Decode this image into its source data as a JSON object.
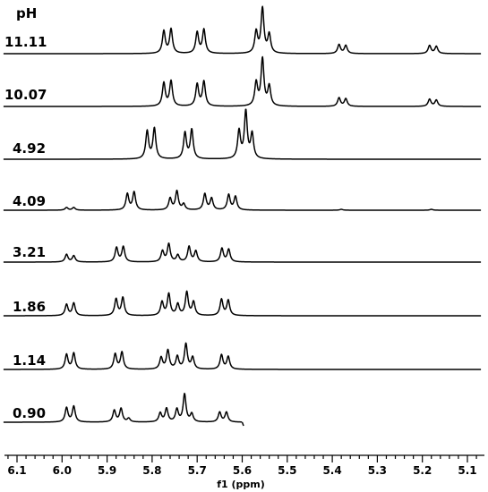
{
  "chart_data": {
    "type": "line",
    "title": "",
    "header": "pH",
    "xlabel": "f1 (ppm)",
    "ylabel": "",
    "xlim": [
      6.13,
      5.07
    ],
    "x_reversed": true,
    "y_axis_shown": false,
    "grid": false,
    "ticks": [
      "6.1",
      "6.0",
      "5.9",
      "5.8",
      "5.7",
      "5.6",
      "5.5",
      "5.4",
      "5.3",
      "5.2",
      "5.1"
    ],
    "tick_values": [
      6.1,
      6.0,
      5.9,
      5.8,
      5.7,
      5.6,
      5.5,
      5.4,
      5.3,
      5.2,
      5.1
    ],
    "series": [
      {
        "name": "11.11",
        "peaks": [
          {
            "x": 5.774,
            "h": 0.5
          },
          {
            "x": 5.758,
            "h": 0.54
          },
          {
            "x": 5.7,
            "h": 0.47
          },
          {
            "x": 5.685,
            "h": 0.53
          },
          {
            "x": 5.569,
            "h": 0.48
          },
          {
            "x": 5.555,
            "h": 1.0
          },
          {
            "x": 5.54,
            "h": 0.42
          },
          {
            "x": 5.385,
            "h": 0.2
          },
          {
            "x": 5.37,
            "h": 0.18
          },
          {
            "x": 5.184,
            "h": 0.18
          },
          {
            "x": 5.169,
            "h": 0.16
          }
        ]
      },
      {
        "name": "10.07",
        "peaks": [
          {
            "x": 5.774,
            "h": 0.52
          },
          {
            "x": 5.758,
            "h": 0.56
          },
          {
            "x": 5.7,
            "h": 0.49
          },
          {
            "x": 5.685,
            "h": 0.55
          },
          {
            "x": 5.569,
            "h": 0.52
          },
          {
            "x": 5.555,
            "h": 1.05
          },
          {
            "x": 5.54,
            "h": 0.44
          },
          {
            "x": 5.385,
            "h": 0.19
          },
          {
            "x": 5.37,
            "h": 0.17
          },
          {
            "x": 5.184,
            "h": 0.16
          },
          {
            "x": 5.169,
            "h": 0.14
          }
        ]
      },
      {
        "name": "4.92",
        "peaks": [
          {
            "x": 5.811,
            "h": 0.62
          },
          {
            "x": 5.795,
            "h": 0.68
          },
          {
            "x": 5.727,
            "h": 0.58
          },
          {
            "x": 5.712,
            "h": 0.65
          },
          {
            "x": 5.607,
            "h": 0.62
          },
          {
            "x": 5.592,
            "h": 1.05
          },
          {
            "x": 5.578,
            "h": 0.55
          }
        ]
      },
      {
        "name": "4.09",
        "peaks": [
          {
            "x": 5.99,
            "h": 0.06
          },
          {
            "x": 5.974,
            "h": 0.06
          },
          {
            "x": 5.855,
            "h": 0.36
          },
          {
            "x": 5.84,
            "h": 0.4
          },
          {
            "x": 5.76,
            "h": 0.26
          },
          {
            "x": 5.745,
            "h": 0.42
          },
          {
            "x": 5.73,
            "h": 0.13
          },
          {
            "x": 5.683,
            "h": 0.36
          },
          {
            "x": 5.668,
            "h": 0.26
          },
          {
            "x": 5.63,
            "h": 0.34
          },
          {
            "x": 5.615,
            "h": 0.3
          },
          {
            "x": 5.38,
            "h": 0.02
          },
          {
            "x": 5.18,
            "h": 0.02
          }
        ]
      },
      {
        "name": "3.21",
        "peaks": [
          {
            "x": 5.99,
            "h": 0.17
          },
          {
            "x": 5.974,
            "h": 0.14
          },
          {
            "x": 5.879,
            "h": 0.32
          },
          {
            "x": 5.864,
            "h": 0.34
          },
          {
            "x": 5.777,
            "h": 0.24
          },
          {
            "x": 5.763,
            "h": 0.4
          },
          {
            "x": 5.743,
            "h": 0.15
          },
          {
            "x": 5.718,
            "h": 0.34
          },
          {
            "x": 5.703,
            "h": 0.24
          },
          {
            "x": 5.645,
            "h": 0.3
          },
          {
            "x": 5.63,
            "h": 0.28
          }
        ]
      },
      {
        "name": "1.86",
        "peaks": [
          {
            "x": 5.99,
            "h": 0.25
          },
          {
            "x": 5.974,
            "h": 0.28
          },
          {
            "x": 5.88,
            "h": 0.37
          },
          {
            "x": 5.865,
            "h": 0.4
          },
          {
            "x": 5.778,
            "h": 0.3
          },
          {
            "x": 5.763,
            "h": 0.48
          },
          {
            "x": 5.743,
            "h": 0.25
          },
          {
            "x": 5.723,
            "h": 0.52
          },
          {
            "x": 5.708,
            "h": 0.3
          },
          {
            "x": 5.646,
            "h": 0.36
          },
          {
            "x": 5.631,
            "h": 0.34
          }
        ]
      },
      {
        "name": "1.14",
        "peaks": [
          {
            "x": 5.99,
            "h": 0.33
          },
          {
            "x": 5.974,
            "h": 0.36
          },
          {
            "x": 5.882,
            "h": 0.34
          },
          {
            "x": 5.867,
            "h": 0.38
          },
          {
            "x": 5.78,
            "h": 0.26
          },
          {
            "x": 5.765,
            "h": 0.42
          },
          {
            "x": 5.744,
            "h": 0.28
          },
          {
            "x": 5.725,
            "h": 0.56
          },
          {
            "x": 5.71,
            "h": 0.26
          },
          {
            "x": 5.646,
            "h": 0.32
          },
          {
            "x": 5.631,
            "h": 0.28
          }
        ]
      },
      {
        "name": "0.90",
        "peaks": [
          {
            "x": 5.99,
            "h": 0.32
          },
          {
            "x": 5.974,
            "h": 0.35
          },
          {
            "x": 5.884,
            "h": 0.26
          },
          {
            "x": 5.869,
            "h": 0.3
          },
          {
            "x": 5.852,
            "h": 0.08
          },
          {
            "x": 5.782,
            "h": 0.2
          },
          {
            "x": 5.768,
            "h": 0.3
          },
          {
            "x": 5.745,
            "h": 0.28
          },
          {
            "x": 5.728,
            "h": 0.62
          },
          {
            "x": 5.712,
            "h": 0.18
          },
          {
            "x": 5.65,
            "h": 0.22
          },
          {
            "x": 5.635,
            "h": 0.22
          }
        ]
      }
    ]
  }
}
